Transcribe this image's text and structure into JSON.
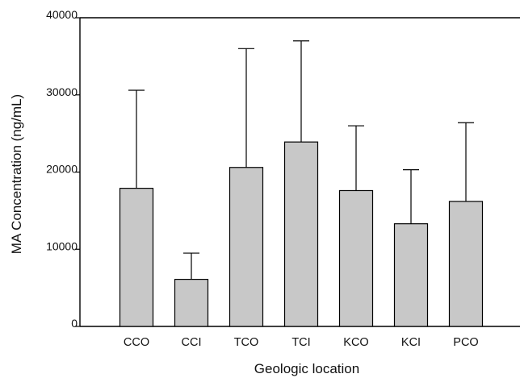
{
  "chart_data": {
    "type": "bar",
    "categories": [
      "CCO",
      "CCI",
      "TCO",
      "TCI",
      "KCO",
      "KCI",
      "PCO"
    ],
    "values": [
      17900,
      6100,
      20600,
      23900,
      17600,
      13300,
      16200
    ],
    "error_upper": [
      30600,
      9500,
      36000,
      37000,
      26000,
      20300,
      26400
    ],
    "xlabel": "Geologic location",
    "ylabel": "MA Concentration (ng/mL)",
    "ylim": [
      0,
      40000
    ],
    "yticks": [
      0,
      10000,
      20000,
      30000,
      40000
    ],
    "bar_color": "#c8c8c8",
    "grid": false,
    "legend": "none"
  }
}
